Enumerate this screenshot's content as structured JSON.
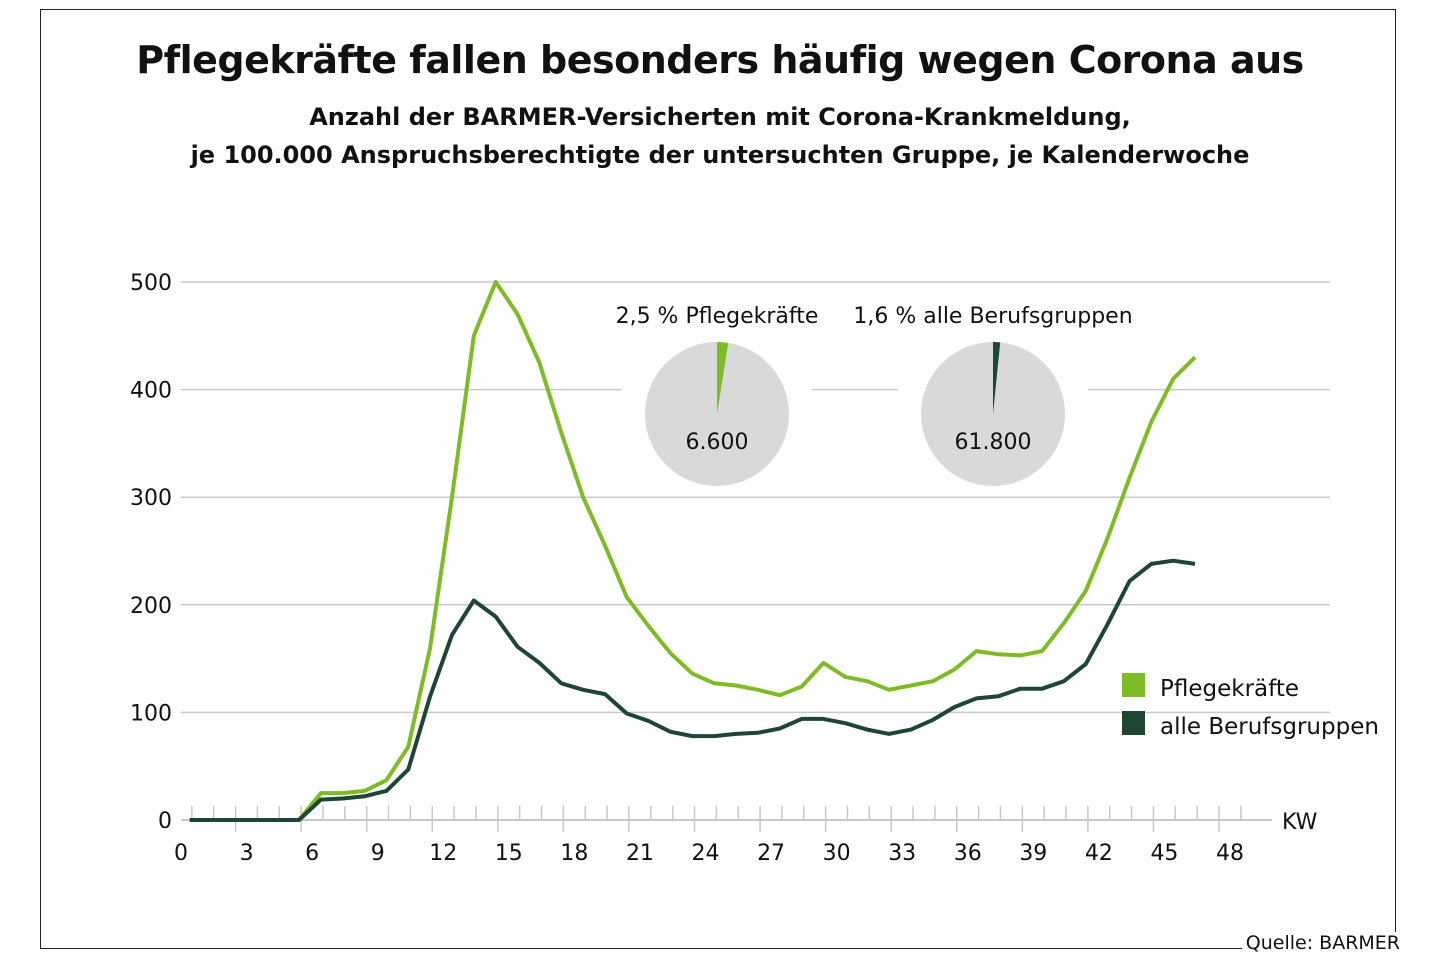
{
  "chart_data": {
    "type": "line",
    "title": "Pflegekräfte fallen besonders häufig wegen Corona aus",
    "subtitle": [
      "Anzahl der BARMER-Versicherten mit Corona-Krankmeldung,",
      "je 100.000 Anspruchsberechtigte der untersuchten Gruppe, je Kalenderwoche"
    ],
    "xlabel": "KW",
    "ylabel": "",
    "xlim": [
      0,
      48
    ],
    "ylim": [
      0,
      500
    ],
    "xticks": [
      0,
      3,
      6,
      9,
      12,
      15,
      18,
      21,
      24,
      27,
      30,
      33,
      36,
      39,
      42,
      45,
      48
    ],
    "yticks": [
      0,
      100,
      200,
      300,
      400,
      500
    ],
    "grid": true,
    "legend_position": "right",
    "x": [
      0,
      1,
      2,
      3,
      4,
      5,
      6,
      7,
      8,
      9,
      10,
      11,
      12,
      13,
      14,
      15,
      16,
      17,
      18,
      19,
      20,
      21,
      22,
      23,
      24,
      25,
      26,
      27,
      28,
      29,
      30,
      31,
      32,
      33,
      34,
      35,
      36,
      37,
      38,
      39,
      40,
      41,
      42,
      43,
      44,
      45,
      46
    ],
    "series": [
      {
        "name": "Pflegekräfte",
        "color": "#7fba27",
        "values": [
          0,
          0,
          0,
          0,
          0,
          0,
          25,
          25,
          27,
          37,
          68,
          160,
          300,
          450,
          500,
          470,
          425,
          360,
          300,
          255,
          207,
          180,
          155,
          136,
          127,
          125,
          121,
          116,
          124,
          146,
          133,
          129,
          121,
          125,
          129,
          140,
          157,
          154,
          153,
          157,
          183,
          213,
          262,
          318,
          370,
          410,
          430
        ]
      },
      {
        "name": "alle Berufsgruppen",
        "color": "#1e4632",
        "values": [
          0,
          0,
          0,
          0,
          0,
          0,
          19,
          20,
          22,
          27,
          47,
          115,
          172,
          204,
          189,
          161,
          146,
          127,
          121,
          117,
          99,
          92,
          82,
          78,
          78,
          80,
          81,
          85,
          94,
          94,
          90,
          84,
          80,
          84,
          93,
          105,
          113,
          115,
          122,
          122,
          129,
          145,
          182,
          222,
          238,
          241,
          238
        ]
      }
    ],
    "annotations": {
      "pies": [
        {
          "label": "2,5 % Pflegekräfte",
          "share_percent": 2.5,
          "total": "6.600",
          "color": "#7fba27"
        },
        {
          "label": "1,6 % alle Berufsgruppen",
          "share_percent": 1.6,
          "total": "61.800",
          "color": "#1e4632"
        }
      ]
    },
    "source": "Quelle: BARMER"
  }
}
